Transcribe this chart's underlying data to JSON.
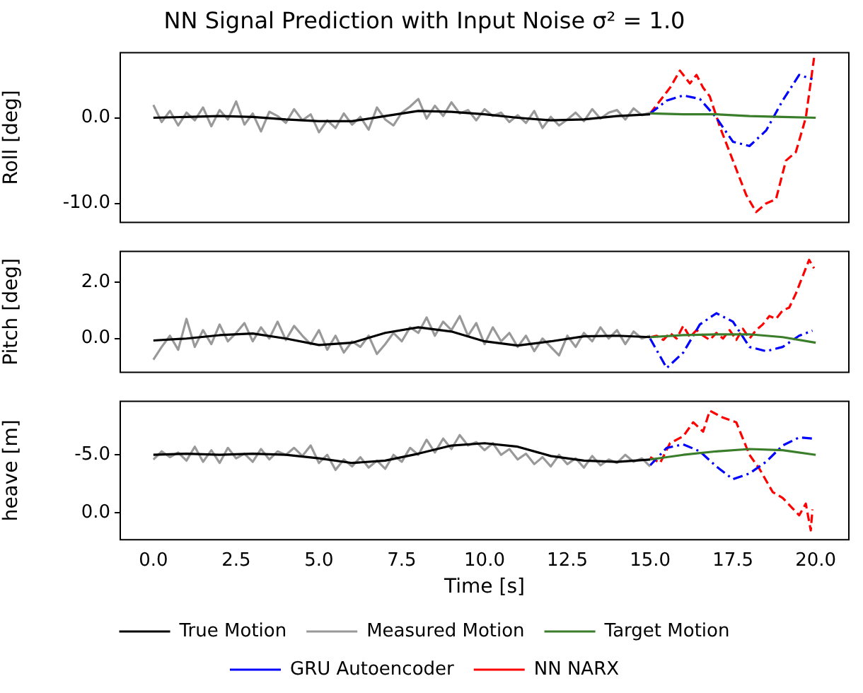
{
  "chart_data": [
    {
      "type": "line",
      "title": "NN Signal Prediction with Input Noise σ² = 1.0",
      "ylabel": "Roll [deg]",
      "xlim": [
        -1,
        21
      ],
      "ylim": [
        -12.2,
        7.6
      ],
      "yticks": [
        {
          "value": -10,
          "label": "-10.0"
        },
        {
          "value": 0,
          "label": "0.0"
        }
      ],
      "tick_labels": "y",
      "x": [
        0,
        0.25,
        0.5,
        0.75,
        1,
        1.25,
        1.5,
        1.75,
        2,
        2.25,
        2.5,
        2.75,
        3,
        3.25,
        3.5,
        3.75,
        4,
        4.25,
        4.5,
        4.75,
        5,
        5.25,
        5.5,
        5.75,
        6,
        6.25,
        6.5,
        6.75,
        7,
        7.25,
        7.5,
        7.75,
        8,
        8.25,
        8.5,
        8.75,
        9,
        9.25,
        9.5,
        9.75,
        10,
        10.25,
        10.5,
        10.75,
        11,
        11.25,
        11.5,
        11.75,
        12,
        12.25,
        12.5,
        12.75,
        13,
        13.25,
        13.5,
        13.75,
        14,
        14.25,
        14.5,
        14.75,
        15
      ],
      "series": [
        {
          "color": "#000000",
          "x": [
            0,
            1,
            2,
            3,
            4,
            5,
            6,
            7,
            8,
            9,
            10,
            11,
            12,
            13,
            14,
            15
          ],
          "values": [
            0,
            0.1,
            0.2,
            0.1,
            -0.2,
            -0.4,
            -0.4,
            0.2,
            0.8,
            0.7,
            0.4,
            0,
            -0.3,
            -0.2,
            0.2,
            0.4
          ]
        },
        {
          "color": "#999999",
          "values": [
            1.5,
            -0.5,
            0.8,
            -0.9,
            0.6,
            -0.3,
            1.2,
            -1.0,
            0.9,
            -0.2,
            1.9,
            -0.8,
            0.5,
            -1.6,
            0.7,
            0.2,
            -0.6,
            1.0,
            -0.3,
            0.4,
            -1.7,
            -0.3,
            -1.2,
            0.5,
            -0.8,
            0.1,
            -1.4,
            1.2,
            -0.2,
            -0.9,
            0.6,
            1.3,
            2.2,
            -0.1,
            1.4,
            0.2,
            1.8,
            0.5,
            0.9,
            -0.3,
            1.0,
            0.2,
            0.6,
            -0.5,
            0.3,
            -0.6,
            0.8,
            -1.2,
            0.1,
            -0.9,
            -0.2,
            0.6,
            -0.4,
            1.0,
            -0.1,
            0.6,
            0.9,
            -0.2,
            1.1,
            0.3,
            0.6
          ]
        },
        {
          "color": "#3a7d2a",
          "x": [
            15,
            16,
            17,
            18,
            19,
            20
          ],
          "values": [
            0.5,
            0.4,
            0.4,
            0.2,
            0.1,
            0
          ]
        },
        {
          "color": "#0000ff",
          "line_style": "dashdot",
          "x": [
            15,
            15.5,
            16,
            16.5,
            17,
            17.5,
            18,
            18.5,
            19,
            19.5,
            19.9
          ],
          "values": [
            0.5,
            2.0,
            2.6,
            2.2,
            0,
            -2.8,
            -3.3,
            -1.5,
            2.0,
            5.0,
            4.5
          ]
        },
        {
          "color": "#ff0000",
          "line_style": "dashed",
          "x": [
            15,
            15.4,
            15.6,
            15.9,
            16.2,
            16.4,
            16.6,
            16.8,
            17.1,
            17.4,
            17.6,
            17.9,
            18.2,
            18.5,
            18.8,
            19.1,
            19.4,
            19.7,
            19.95
          ],
          "values": [
            0.5,
            2.5,
            3.5,
            5.5,
            4,
            5,
            3.5,
            2.5,
            -1,
            -4,
            -6,
            -9,
            -11,
            -10,
            -9.5,
            -5,
            -4,
            0,
            7
          ]
        }
      ]
    },
    {
      "type": "line",
      "ylabel": "Pitch [deg]",
      "xlim": [
        -1,
        21
      ],
      "ylim": [
        -1.2,
        3.1
      ],
      "yticks": [
        {
          "value": 0,
          "label": "0.0"
        },
        {
          "value": 2,
          "label": "2.0"
        }
      ],
      "tick_labels": "y",
      "x": [
        0,
        0.25,
        0.5,
        0.75,
        1,
        1.25,
        1.5,
        1.75,
        2,
        2.25,
        2.5,
        2.75,
        3,
        3.25,
        3.5,
        3.75,
        4,
        4.25,
        4.5,
        4.75,
        5,
        5.25,
        5.5,
        5.75,
        6,
        6.25,
        6.5,
        6.75,
        7,
        7.25,
        7.5,
        7.75,
        8,
        8.25,
        8.5,
        8.75,
        9,
        9.25,
        9.5,
        9.75,
        10,
        10.25,
        10.5,
        10.75,
        11,
        11.25,
        11.5,
        11.75,
        12,
        12.25,
        12.5,
        12.75,
        13,
        13.25,
        13.5,
        13.75,
        14,
        14.25,
        14.5,
        14.75,
        15
      ],
      "series": [
        {
          "color": "#000000",
          "x": [
            0,
            1,
            2,
            3,
            4,
            5,
            6,
            7,
            8,
            9,
            10,
            11,
            12,
            13,
            14,
            15
          ],
          "values": [
            -0.07,
            0.0,
            0.12,
            0.18,
            0.0,
            -0.23,
            -0.15,
            0.2,
            0.4,
            0.25,
            -0.1,
            -0.25,
            -0.1,
            0.08,
            0.1,
            0.05
          ]
        },
        {
          "color": "#999999",
          "values": [
            -0.75,
            -0.3,
            0.1,
            -0.4,
            0.7,
            -0.3,
            0.3,
            -0.2,
            0.5,
            -0.1,
            0.2,
            0.55,
            -0.1,
            0.4,
            0.0,
            0.6,
            -0.05,
            0.45,
            0.1,
            -0.2,
            0.3,
            -0.4,
            0.1,
            -0.5,
            -0.1,
            -0.3,
            0.1,
            -0.55,
            -0.2,
            0.2,
            -0.1,
            0.4,
            0.2,
            0.75,
            0.1,
            0.6,
            0.3,
            0.8,
            0.1,
            0.55,
            -0.2,
            0.4,
            -0.1,
            0.2,
            -0.3,
            0.1,
            -0.45,
            0.0,
            -0.3,
            -0.6,
            0.1,
            -0.3,
            0.2,
            -0.1,
            0.4,
            0.0,
            0.3,
            -0.2,
            0.25,
            0.0,
            0.1
          ]
        },
        {
          "color": "#3a7d2a",
          "x": [
            15,
            16,
            17,
            18,
            19,
            20
          ],
          "values": [
            0.05,
            0.12,
            0.15,
            0.15,
            0.05,
            -0.15
          ]
        },
        {
          "color": "#0000ff",
          "line_style": "dashdot",
          "x": [
            15,
            15.5,
            16,
            16.5,
            17,
            17.5,
            18,
            18.5,
            19,
            19.5,
            19.9
          ],
          "values": [
            0,
            -1.05,
            -0.5,
            0.5,
            0.9,
            0.6,
            -0.3,
            -0.45,
            -0.3,
            0.1,
            0.28
          ]
        },
        {
          "color": "#ff0000",
          "line_style": "dashed",
          "x": [
            15,
            15.2,
            15.4,
            15.6,
            15.8,
            16,
            16.2,
            16.4,
            16.6,
            16.8,
            17,
            17.2,
            17.4,
            17.6,
            17.8,
            18,
            18.2,
            18.4,
            18.6,
            18.8,
            19,
            19.2,
            19.4,
            19.6,
            19.8,
            19.95
          ],
          "values": [
            0.05,
            0.1,
            -0.05,
            0.2,
            0.0,
            0.45,
            0.05,
            0.3,
            0.1,
            -0.05,
            0.2,
            0.0,
            0.3,
            -0.05,
            0.35,
            0.0,
            0.3,
            0.5,
            0.8,
            0.7,
            1.0,
            1.1,
            1.6,
            2.2,
            2.8,
            2.5
          ]
        }
      ]
    },
    {
      "type": "line",
      "ylabel": "heave [m]",
      "xlabel": "Time [s]",
      "legend": "bottom",
      "xlim": [
        -1,
        21
      ],
      "xticks": [
        {
          "value": 0,
          "label": "0.0"
        },
        {
          "value": 2.5,
          "label": "2.5"
        },
        {
          "value": 5,
          "label": "5.0"
        },
        {
          "value": 7.5,
          "label": "7.5"
        },
        {
          "value": 10,
          "label": "10.0"
        },
        {
          "value": 12.5,
          "label": "12.5"
        },
        {
          "value": 15,
          "label": "15.0"
        },
        {
          "value": 17.5,
          "label": "17.5"
        },
        {
          "value": 20,
          "label": "20.0"
        }
      ],
      "ylim": [
        2.3,
        -9.6
      ],
      "yticks": [
        {
          "value": -5,
          "label": "-5.0"
        },
        {
          "value": 0,
          "label": "0.0"
        }
      ],
      "x": [
        0,
        0.25,
        0.5,
        0.75,
        1,
        1.25,
        1.5,
        1.75,
        2,
        2.25,
        2.5,
        2.75,
        3,
        3.25,
        3.5,
        3.75,
        4,
        4.25,
        4.5,
        4.75,
        5,
        5.25,
        5.5,
        5.75,
        6,
        6.25,
        6.5,
        6.75,
        7,
        7.25,
        7.5,
        7.75,
        8,
        8.25,
        8.5,
        8.75,
        9,
        9.25,
        9.5,
        9.75,
        10,
        10.25,
        10.5,
        10.75,
        11,
        11.25,
        11.5,
        11.75,
        12,
        12.25,
        12.5,
        12.75,
        13,
        13.25,
        13.5,
        13.75,
        14,
        14.25,
        14.5,
        14.75,
        15
      ],
      "series": [
        {
          "name": "True Motion",
          "color": "#000000",
          "x": [
            0,
            1,
            2,
            3,
            4,
            5,
            6,
            7,
            8,
            9,
            10,
            11,
            12,
            13,
            14,
            15
          ],
          "values": [
            -5.0,
            -5.1,
            -5.0,
            -5.1,
            -5.0,
            -4.7,
            -4.3,
            -4.5,
            -5.1,
            -5.8,
            -6.0,
            -5.7,
            -4.9,
            -4.5,
            -4.4,
            -4.6
          ]
        },
        {
          "name": "Measured Motion",
          "color": "#999999",
          "values": [
            -4.6,
            -5.3,
            -4.8,
            -5.2,
            -4.5,
            -5.7,
            -4.4,
            -5.4,
            -4.3,
            -5.6,
            -4.7,
            -5.1,
            -4.4,
            -5.5,
            -4.6,
            -5.3,
            -5.0,
            -5.6,
            -4.9,
            -5.8,
            -4.3,
            -5.0,
            -3.7,
            -4.6,
            -4.0,
            -4.8,
            -3.9,
            -4.5,
            -3.8,
            -5.0,
            -4.4,
            -5.6,
            -5.0,
            -6.3,
            -5.2,
            -6.4,
            -5.5,
            -6.7,
            -5.8,
            -6.1,
            -5.4,
            -6.0,
            -5.0,
            -5.5,
            -4.6,
            -5.1,
            -4.2,
            -4.8,
            -4.0,
            -5.0,
            -4.2,
            -4.7,
            -3.9,
            -4.9,
            -4.1,
            -4.6,
            -4.3,
            -5.0,
            -4.4,
            -4.7,
            -4.0
          ]
        },
        {
          "name": "Target Motion",
          "color": "#3a7d2a",
          "x": [
            15,
            16,
            17,
            18,
            19,
            20
          ],
          "values": [
            -4.6,
            -5.0,
            -5.3,
            -5.5,
            -5.4,
            -5.0
          ]
        },
        {
          "name": "GRU Autoencoder",
          "color": "#0000ff",
          "line_style": "dashdot",
          "x": [
            15,
            15.5,
            16,
            16.5,
            17,
            17.5,
            18,
            18.5,
            19,
            19.5,
            19.9
          ],
          "values": [
            -4.1,
            -5.6,
            -5.9,
            -5.3,
            -4.0,
            -2.9,
            -3.4,
            -4.4,
            -5.8,
            -6.5,
            -6.4
          ]
        },
        {
          "name": "NN NARX",
          "color": "#ff0000",
          "line_style": "dashed",
          "x": [
            15,
            15.3,
            15.6,
            16,
            16.3,
            16.6,
            16.8,
            17.2,
            17.6,
            18,
            18.3,
            18.7,
            19,
            19.3,
            19.5,
            19.7,
            19.85,
            19.9
          ],
          "values": [
            -4.8,
            -4.3,
            -6.0,
            -6.6,
            -7.8,
            -7.0,
            -8.8,
            -8.2,
            -7.8,
            -5.0,
            -3.8,
            -1.8,
            -1.3,
            -0.4,
            0.2,
            -0.8,
            1.5,
            -0.3
          ]
        }
      ]
    }
  ]
}
